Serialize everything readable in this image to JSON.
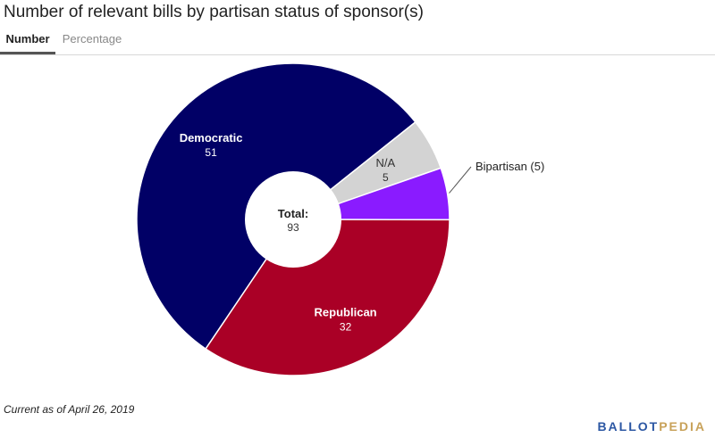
{
  "title": "Number of relevant bills by partisan status of sponsor(s)",
  "tabs": [
    {
      "label": "Number",
      "active": true
    },
    {
      "label": "Percentage",
      "active": false
    }
  ],
  "chart_data": {
    "type": "pie",
    "title": "Number of relevant bills by partisan status of sponsor(s)",
    "slices": [
      {
        "label": "Democratic",
        "value": 51,
        "color": "#010066"
      },
      {
        "label": "N/A",
        "value": 5,
        "color": "#d3d3d3"
      },
      {
        "label": "Bipartisan",
        "value": 5,
        "color": "#8a1bff"
      },
      {
        "label": "Republican",
        "value": 32,
        "color": "#aa0026"
      }
    ],
    "center_label": "Total:",
    "center_value": "93",
    "outside_label": "Bipartisan (5)"
  },
  "footnote": "Current as of April 26, 2019",
  "logo": {
    "part1": "BALLOT",
    "part2": "PEDIA"
  }
}
